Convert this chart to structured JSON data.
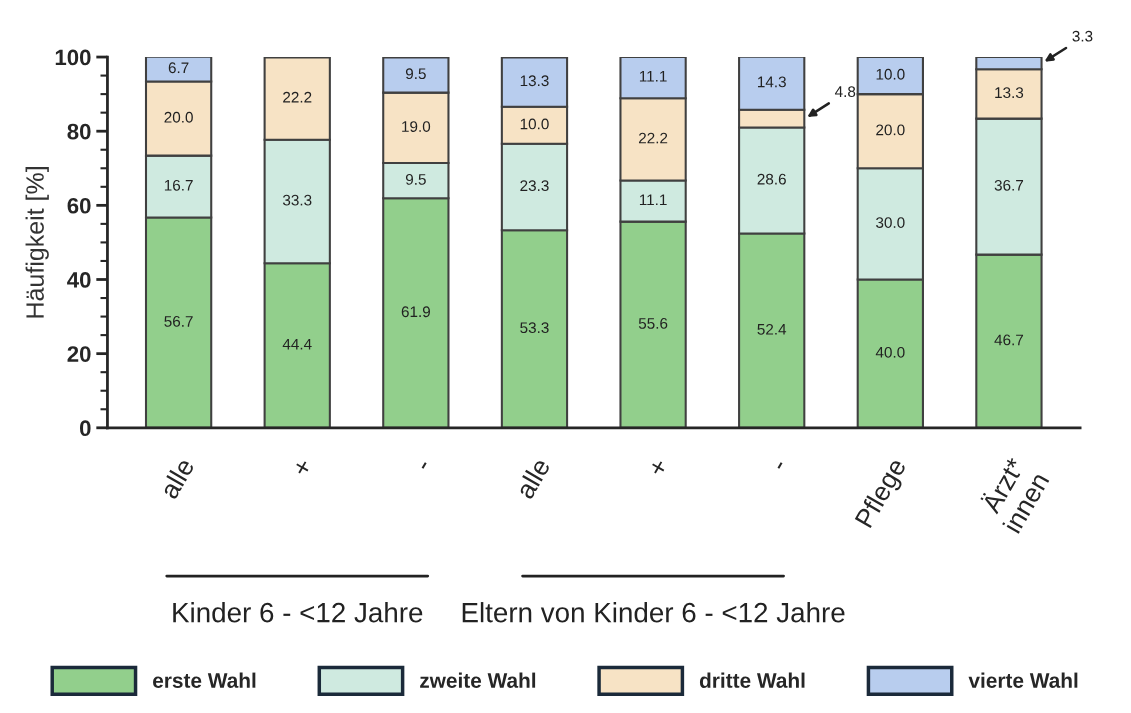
{
  "chart_data": {
    "type": "bar",
    "stacked": true,
    "ylabel": "Häufigkeit [%]",
    "categories": [
      "alle",
      "+",
      "-",
      "alle",
      "+",
      "-",
      "Pflege",
      "Ärzt*\ninnen"
    ],
    "series": [
      {
        "name": "erste Wahl",
        "color": "#92cf8c",
        "values": [
          56.7,
          44.4,
          61.9,
          53.3,
          55.6,
          52.4,
          40.0,
          46.7
        ],
        "value_labels": [
          "56.7",
          "44.4",
          "61.9",
          "53.3",
          "55.6",
          "52.4",
          "40.0",
          "46.7"
        ]
      },
      {
        "name": "zweite Wahl",
        "color": "#cfeae0",
        "values": [
          16.7,
          33.3,
          9.5,
          23.3,
          11.1,
          28.6,
          30.0,
          36.7
        ],
        "value_labels": [
          "16.7",
          "33.3",
          "9.5",
          "23.3",
          "11.1",
          "28.6",
          "30.0",
          "36.7"
        ]
      },
      {
        "name": "dritte Wahl",
        "color": "#f7e3c5",
        "values": [
          20.0,
          22.2,
          19.0,
          10.0,
          22.2,
          4.8,
          20.0,
          13.3
        ],
        "value_labels": [
          "20.0",
          "22.2",
          "19.0",
          "10.0",
          "22.2",
          "4.8",
          "20.0",
          "13.3"
        ]
      },
      {
        "name": "vierte Wahl",
        "color": "#b8cdee",
        "values": [
          6.7,
          null,
          9.5,
          13.3,
          11.1,
          14.3,
          10.0,
          3.3
        ],
        "value_labels": [
          "6.7",
          null,
          "9.5",
          "13.3",
          "11.1",
          "14.3",
          "10.0",
          "3.3"
        ]
      }
    ],
    "ylim": [
      0,
      100
    ],
    "yticks": [
      0,
      20,
      40,
      60,
      80,
      100
    ],
    "annotations": [
      "Kinder 6 - <12 Jahre",
      "Eltern von Kinder 6 - <12 Jahre"
    ],
    "legend": "bottom",
    "grid": false
  }
}
